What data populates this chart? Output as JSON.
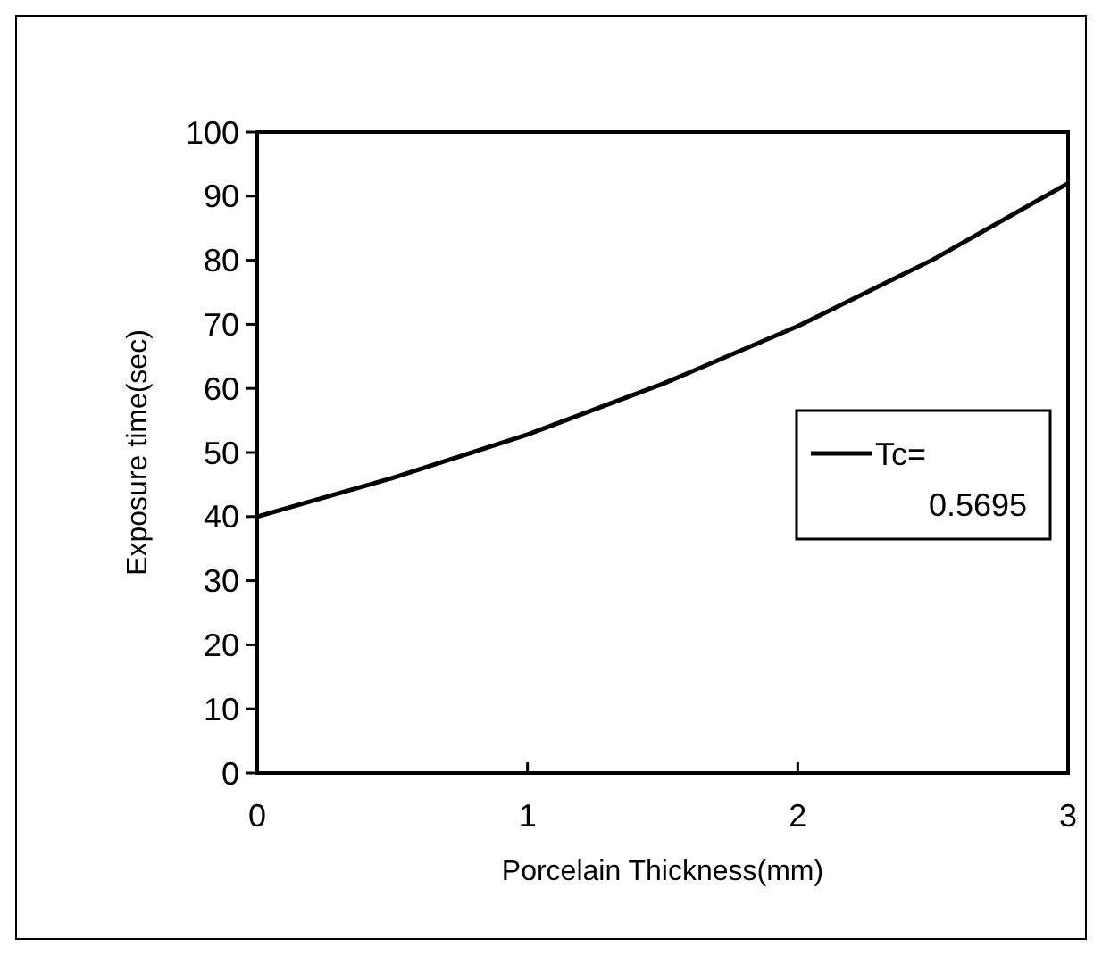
{
  "chart_data": {
    "type": "line",
    "xlabel": "Porcelain Thickness(mm)",
    "ylabel": "Exposure time(sec)",
    "x": [
      0,
      0.5,
      1,
      1.5,
      2,
      2.5,
      3
    ],
    "series": [
      {
        "name": "Tc= 0.5695",
        "color": "#000000",
        "values": [
          40,
          46,
          52.8,
          60.7,
          69.7,
          80.1,
          92
        ]
      }
    ],
    "xlim": [
      0,
      3
    ],
    "xticks": [
      0,
      1,
      2,
      3
    ],
    "ylim": [
      0,
      100
    ],
    "yticks": [
      0,
      10,
      20,
      30,
      40,
      50,
      60,
      70,
      80,
      90,
      100
    ],
    "grid": false,
    "legend": "right",
    "marker": "none",
    "line_style": "solid"
  }
}
